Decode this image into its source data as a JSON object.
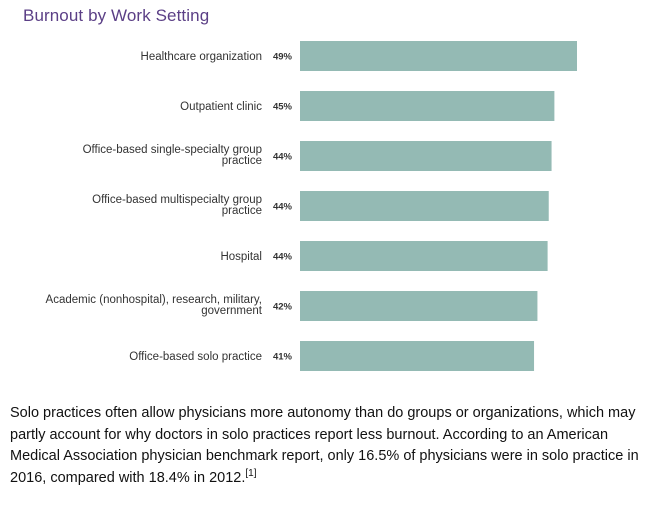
{
  "chart_data": {
    "type": "bar",
    "orientation": "horizontal",
    "title": "Burnout by Work Setting",
    "categories": [
      [
        "Healthcare organization"
      ],
      [
        "Outpatient clinic"
      ],
      [
        "Office-based single-specialty group",
        "practice"
      ],
      [
        "Office-based multispecialty group",
        "practice"
      ],
      [
        "Hospital"
      ],
      [
        "Academic (nonhospital), research, military,",
        "government"
      ],
      [
        "Office-based solo practice"
      ]
    ],
    "values": [
      49,
      45,
      44,
      44,
      44,
      42,
      41
    ],
    "exact_values": [
      49,
      45,
      44.5,
      44,
      43.8,
      42,
      41.4
    ],
    "value_suffix": "%",
    "xlim": [
      0,
      49
    ],
    "bar_color": "#94bab4",
    "grid": false,
    "legend": "none"
  },
  "caption": {
    "text": "Solo practices often allow physicians more autonomy than do groups or organizations, which may partly account for why doctors in solo practices report less burnout. According to an American Medical Association physician benchmark report, only 16.5% of physicians were in solo practice in 2016, compared with 18.4% in 2012.",
    "reference": "[1]"
  },
  "colors": {
    "title": "#5b3f86",
    "bar": "#94bab4"
  }
}
